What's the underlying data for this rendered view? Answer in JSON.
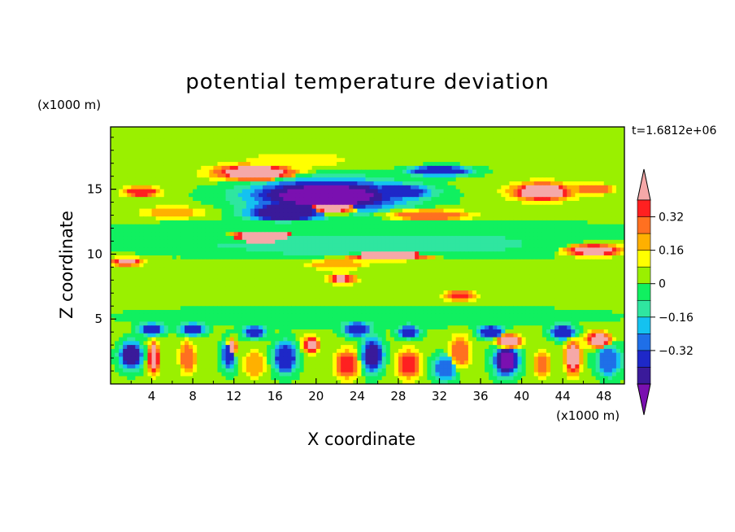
{
  "chart_data": {
    "type": "heatmap",
    "title": "potential temperature deviation",
    "xlabel": "X coordinate",
    "ylabel": "Z coordinate",
    "x_unit": "(x1000 m)",
    "z_unit": "(x1000 m)",
    "time_label": "t=1.6812e+06",
    "xlim": [
      0,
      50
    ],
    "ylim": [
      0,
      19.8
    ],
    "x_ticks": [
      4,
      8,
      12,
      16,
      20,
      24,
      28,
      32,
      36,
      40,
      44,
      48
    ],
    "y_ticks": [
      5,
      10,
      15
    ],
    "colorbar": {
      "levels": [
        -0.48,
        -0.4,
        -0.32,
        -0.24,
        -0.16,
        -0.08,
        0,
        0.08,
        0.16,
        0.24,
        0.32,
        0.4
      ],
      "tick_labels": [
        "0.32",
        "0.16",
        "0",
        "−0.16",
        "−0.32"
      ],
      "tick_values": [
        0.32,
        0.16,
        0,
        -0.16,
        -0.32
      ],
      "colors": [
        "#7a10b0",
        "#3a1a9a",
        "#1e28c8",
        "#1f6fe8",
        "#14c2f0",
        "#2fe6a0",
        "#10f060",
        "#9af000",
        "#ffff00",
        "#ffb000",
        "#ff7020",
        "#ff2020",
        "#f5a8a8"
      ],
      "extend": "both"
    },
    "background_value": 0.02,
    "features": [
      {
        "x": 14,
        "z": 16.3,
        "rx": 5.2,
        "rz": 0.8,
        "v": 0.44
      },
      {
        "x": 32,
        "z": 16.4,
        "rx": 3.8,
        "rz": 0.5,
        "v": -0.4
      },
      {
        "x": 42,
        "z": 14.8,
        "rx": 4.0,
        "rz": 0.9,
        "v": 0.44
      },
      {
        "x": 47,
        "z": 15.0,
        "rx": 2.5,
        "rz": 0.5,
        "v": 0.3
      },
      {
        "x": 3,
        "z": 14.8,
        "rx": 2.3,
        "rz": 0.5,
        "v": 0.36
      },
      {
        "x": 21,
        "z": 14.5,
        "rx": 9.5,
        "rz": 1.6,
        "v": -0.5
      },
      {
        "x": 17,
        "z": 13.2,
        "rx": 4.5,
        "rz": 0.9,
        "v": -0.48
      },
      {
        "x": 28,
        "z": 14.8,
        "rx": 4.0,
        "rz": 0.7,
        "v": -0.36
      },
      {
        "x": 21.5,
        "z": 13.6,
        "rx": 3.2,
        "rz": 0.6,
        "v": 0.44
      },
      {
        "x": 31,
        "z": 13.0,
        "rx": 5.0,
        "rz": 0.5,
        "v": 0.3
      },
      {
        "x": 6,
        "z": 13.2,
        "rx": 4.0,
        "rz": 0.6,
        "v": 0.18
      },
      {
        "x": 15,
        "z": 11.3,
        "rx": 4.5,
        "rz": 1.0,
        "v": 0.44
      },
      {
        "x": 27,
        "z": 9.9,
        "rx": 5.5,
        "rz": 0.5,
        "v": 0.44
      },
      {
        "x": 47,
        "z": 10.3,
        "rx": 3.5,
        "rz": 0.6,
        "v": 0.42
      },
      {
        "x": 25,
        "z": 10.8,
        "rx": 22,
        "rz": 1.3,
        "v": -0.14
      },
      {
        "x": 25,
        "z": 12.0,
        "rx": 25,
        "rz": 0.8,
        "v": -0.06
      },
      {
        "x": 25,
        "z": 8.5,
        "rx": 25,
        "rz": 1.0,
        "v": 0.06
      },
      {
        "x": 22.5,
        "z": 8.1,
        "rx": 1.6,
        "rz": 0.5,
        "v": 0.4
      },
      {
        "x": 22,
        "z": 9.2,
        "rx": 3.5,
        "rz": 0.5,
        "v": 0.22
      },
      {
        "x": 34,
        "z": 6.8,
        "rx": 2.0,
        "rz": 0.5,
        "v": 0.34
      },
      {
        "x": 1.5,
        "z": 9.4,
        "rx": 2.0,
        "rz": 0.4,
        "v": 0.4
      },
      {
        "x": 25,
        "z": 18.3,
        "rx": 25,
        "rz": 1.4,
        "v": 0.06
      },
      {
        "x": 18,
        "z": 17.2,
        "rx": 6.0,
        "rz": 0.7,
        "v": 0.14
      },
      {
        "x": 25,
        "z": 5.2,
        "rx": 25,
        "rz": 0.9,
        "v": -0.06
      },
      {
        "x": 4,
        "z": 4.2,
        "rx": 1.5,
        "rz": 0.6,
        "v": -0.4
      },
      {
        "x": 8,
        "z": 4.2,
        "rx": 1.5,
        "rz": 0.6,
        "v": -0.4
      },
      {
        "x": 14,
        "z": 4.0,
        "rx": 1.4,
        "rz": 0.6,
        "v": -0.4
      },
      {
        "x": 24,
        "z": 4.2,
        "rx": 1.6,
        "rz": 0.7,
        "v": -0.4
      },
      {
        "x": 29,
        "z": 4.0,
        "rx": 1.3,
        "rz": 0.6,
        "v": -0.36
      },
      {
        "x": 37,
        "z": 4.0,
        "rx": 1.5,
        "rz": 0.6,
        "v": -0.4
      },
      {
        "x": 44,
        "z": 4.0,
        "rx": 1.5,
        "rz": 0.7,
        "v": -0.4
      },
      {
        "x": 2,
        "z": 2.2,
        "rx": 1.4,
        "rz": 1.3,
        "v": -0.44
      },
      {
        "x": 4.2,
        "z": 2.0,
        "rx": 0.7,
        "rz": 1.6,
        "v": 0.44
      },
      {
        "x": 7.5,
        "z": 2.0,
        "rx": 1.0,
        "rz": 1.6,
        "v": 0.28
      },
      {
        "x": 11.5,
        "z": 2.2,
        "rx": 0.9,
        "rz": 1.4,
        "v": -0.34
      },
      {
        "x": 11.8,
        "z": 2.8,
        "rx": 0.6,
        "rz": 0.8,
        "v": 0.44
      },
      {
        "x": 14,
        "z": 1.5,
        "rx": 1.3,
        "rz": 1.3,
        "v": 0.22
      },
      {
        "x": 17,
        "z": 2.0,
        "rx": 1.4,
        "rz": 1.5,
        "v": -0.4
      },
      {
        "x": 19.5,
        "z": 3.0,
        "rx": 1.0,
        "rz": 0.8,
        "v": 0.44
      },
      {
        "x": 23,
        "z": 1.5,
        "rx": 1.5,
        "rz": 1.4,
        "v": 0.32
      },
      {
        "x": 25.5,
        "z": 2.2,
        "rx": 1.3,
        "rz": 1.6,
        "v": -0.44
      },
      {
        "x": 29,
        "z": 1.5,
        "rx": 1.5,
        "rz": 1.4,
        "v": 0.32
      },
      {
        "x": 32.5,
        "z": 1.2,
        "rx": 1.5,
        "rz": 1.2,
        "v": -0.3
      },
      {
        "x": 34,
        "z": 2.5,
        "rx": 1.3,
        "rz": 1.5,
        "v": 0.3
      },
      {
        "x": 38.5,
        "z": 1.8,
        "rx": 1.5,
        "rz": 1.5,
        "v": -0.5
      },
      {
        "x": 38.8,
        "z": 3.3,
        "rx": 1.5,
        "rz": 0.7,
        "v": 0.44
      },
      {
        "x": 42,
        "z": 1.5,
        "rx": 1.0,
        "rz": 1.3,
        "v": 0.28
      },
      {
        "x": 45,
        "z": 2.0,
        "rx": 1.0,
        "rz": 1.6,
        "v": 0.44
      },
      {
        "x": 47.5,
        "z": 3.4,
        "rx": 1.5,
        "rz": 0.8,
        "v": 0.44
      },
      {
        "x": 48.5,
        "z": 1.8,
        "rx": 1.5,
        "rz": 1.5,
        "v": -0.3
      }
    ]
  }
}
